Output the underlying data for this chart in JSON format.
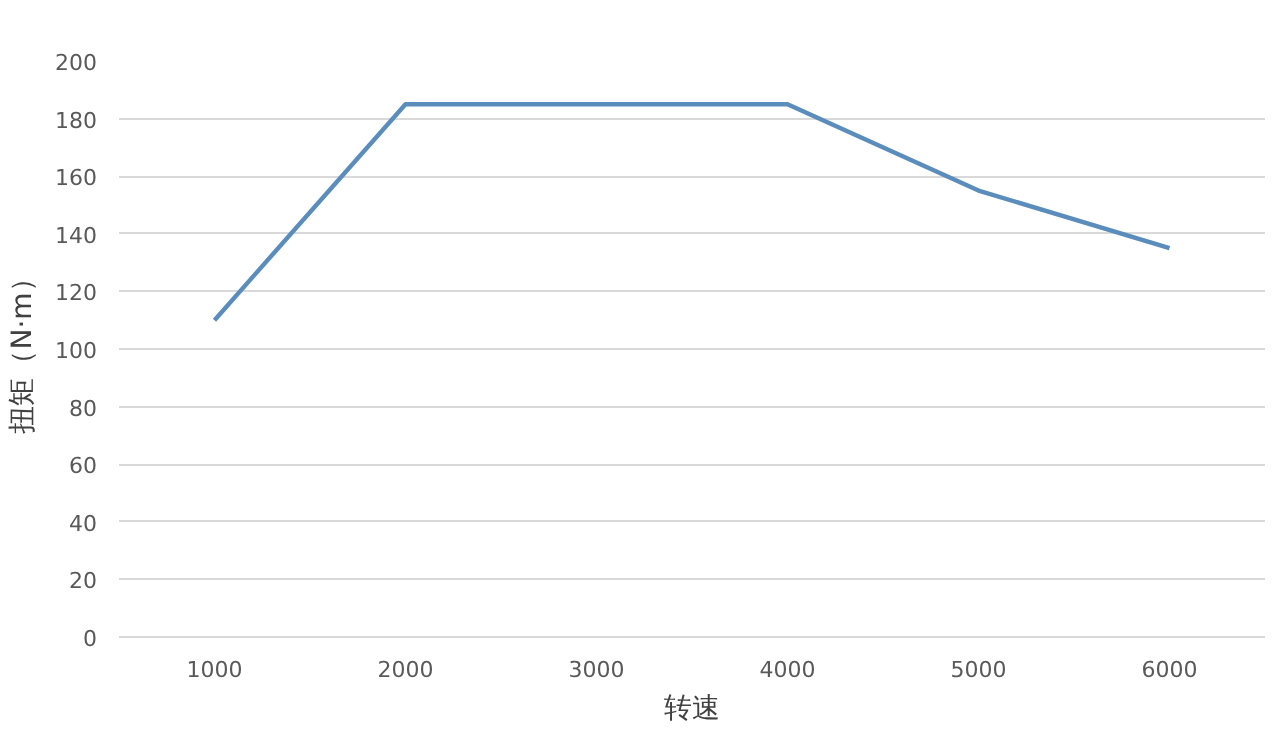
{
  "chart_data": {
    "type": "line",
    "xlabel": "转速",
    "ylabel": "扭矩（N·m）",
    "categories": [
      "1000",
      "2000",
      "3000",
      "4000",
      "5000",
      "6000"
    ],
    "series": [
      {
        "color": "#5b8dbc",
        "values": [
          110,
          185,
          185,
          185,
          155,
          135
        ]
      }
    ],
    "ylim": [
      0,
      200
    ],
    "yticks": [
      0,
      20,
      40,
      60,
      80,
      100,
      120,
      140,
      160,
      180,
      200
    ],
    "grid": "y"
  }
}
